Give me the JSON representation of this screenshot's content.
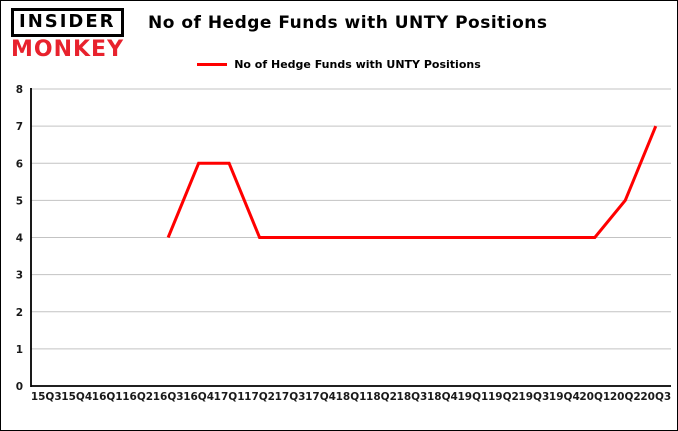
{
  "logo": {
    "line1": "INSIDER",
    "line2": "MONKEY",
    "accent_color": "#e8222d"
  },
  "title": "No of Hedge Funds with UNTY Positions",
  "legend": {
    "label": "No of Hedge Funds with UNTY Positions",
    "color": "#ff0000"
  },
  "chart_data": {
    "type": "line",
    "title": "No of Hedge Funds with UNTY Positions",
    "categories": [
      "15Q3",
      "15Q4",
      "16Q1",
      "16Q2",
      "16Q3",
      "16Q4",
      "17Q1",
      "17Q2",
      "17Q3",
      "17Q4",
      "18Q1",
      "18Q2",
      "18Q3",
      "18Q4",
      "19Q1",
      "19Q2",
      "19Q3",
      "19Q4",
      "20Q1",
      "20Q2",
      "20Q3"
    ],
    "series": [
      {
        "name": "No of Hedge Funds with UNTY Positions",
        "color": "#ff0000",
        "values": [
          null,
          null,
          null,
          null,
          4,
          6,
          6,
          4,
          4,
          4,
          4,
          4,
          4,
          4,
          4,
          4,
          4,
          4,
          4,
          5,
          7
        ]
      }
    ],
    "xlabel": "",
    "ylabel": "",
    "ylim": [
      0,
      8
    ],
    "yticks": [
      0,
      1,
      2,
      3,
      4,
      5,
      6,
      7,
      8
    ],
    "grid": true,
    "gridline_color": "#c3c3c3",
    "legend_position": "top-center"
  }
}
